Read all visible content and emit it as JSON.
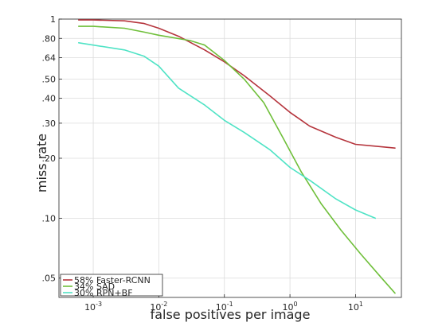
{
  "chart_data": {
    "type": "line",
    "title": "",
    "xlabel": "false positives per image",
    "ylabel": "miss rate",
    "x_scale": "log",
    "y_scale": "log",
    "xlim": [
      0.0003,
      50
    ],
    "ylim": [
      0.04,
      1
    ],
    "grid": true,
    "legend_position": "bottom-left",
    "x_ticks": [
      {
        "value": 0.001,
        "base": "10",
        "exp": "-3"
      },
      {
        "value": 0.01,
        "base": "10",
        "exp": "-2"
      },
      {
        "value": 0.1,
        "base": "10",
        "exp": "-1"
      },
      {
        "value": 1,
        "base": "10",
        "exp": "0"
      },
      {
        "value": 10,
        "base": "10",
        "exp": "1"
      }
    ],
    "y_ticks": [
      {
        "value": 0.05,
        "label": ".05"
      },
      {
        "value": 0.1,
        "label": ".10"
      },
      {
        "value": 0.2,
        "label": ".20"
      },
      {
        "value": 0.3,
        "label": ".30"
      },
      {
        "value": 0.4,
        "label": ".40"
      },
      {
        "value": 0.5,
        "label": ".50"
      },
      {
        "value": 0.64,
        "label": ".64"
      },
      {
        "value": 0.8,
        "label": ".80"
      },
      {
        "value": 1,
        "label": "1"
      }
    ],
    "series": [
      {
        "name": "58% Faster-RCNN",
        "color": "#b5343c",
        "x": [
          0.0006,
          0.001,
          0.003,
          0.006,
          0.01,
          0.02,
          0.05,
          0.1,
          0.2,
          0.5,
          1,
          2,
          5,
          10,
          20,
          40
        ],
        "y": [
          0.99,
          0.99,
          0.98,
          0.95,
          0.9,
          0.82,
          0.7,
          0.61,
          0.52,
          0.41,
          0.34,
          0.29,
          0.255,
          0.235,
          0.23,
          0.225
        ]
      },
      {
        "name": "34% SAD",
        "color": "#6fbf3a",
        "x": [
          0.0006,
          0.001,
          0.003,
          0.006,
          0.01,
          0.03,
          0.05,
          0.1,
          0.2,
          0.4,
          0.8,
          1.5,
          3,
          6,
          12,
          25,
          40
        ],
        "y": [
          0.92,
          0.92,
          0.9,
          0.86,
          0.83,
          0.78,
          0.74,
          0.62,
          0.5,
          0.38,
          0.25,
          0.17,
          0.118,
          0.087,
          0.066,
          0.05,
          0.042
        ]
      },
      {
        "name": "30% RPN+BF",
        "color": "#4fe3c5",
        "x": [
          0.0006,
          0.001,
          0.003,
          0.006,
          0.01,
          0.02,
          0.05,
          0.1,
          0.2,
          0.5,
          1,
          2,
          5,
          10,
          20
        ],
        "y": [
          0.76,
          0.74,
          0.7,
          0.65,
          0.58,
          0.45,
          0.37,
          0.31,
          0.27,
          0.22,
          0.18,
          0.155,
          0.125,
          0.11,
          0.1
        ]
      }
    ]
  }
}
